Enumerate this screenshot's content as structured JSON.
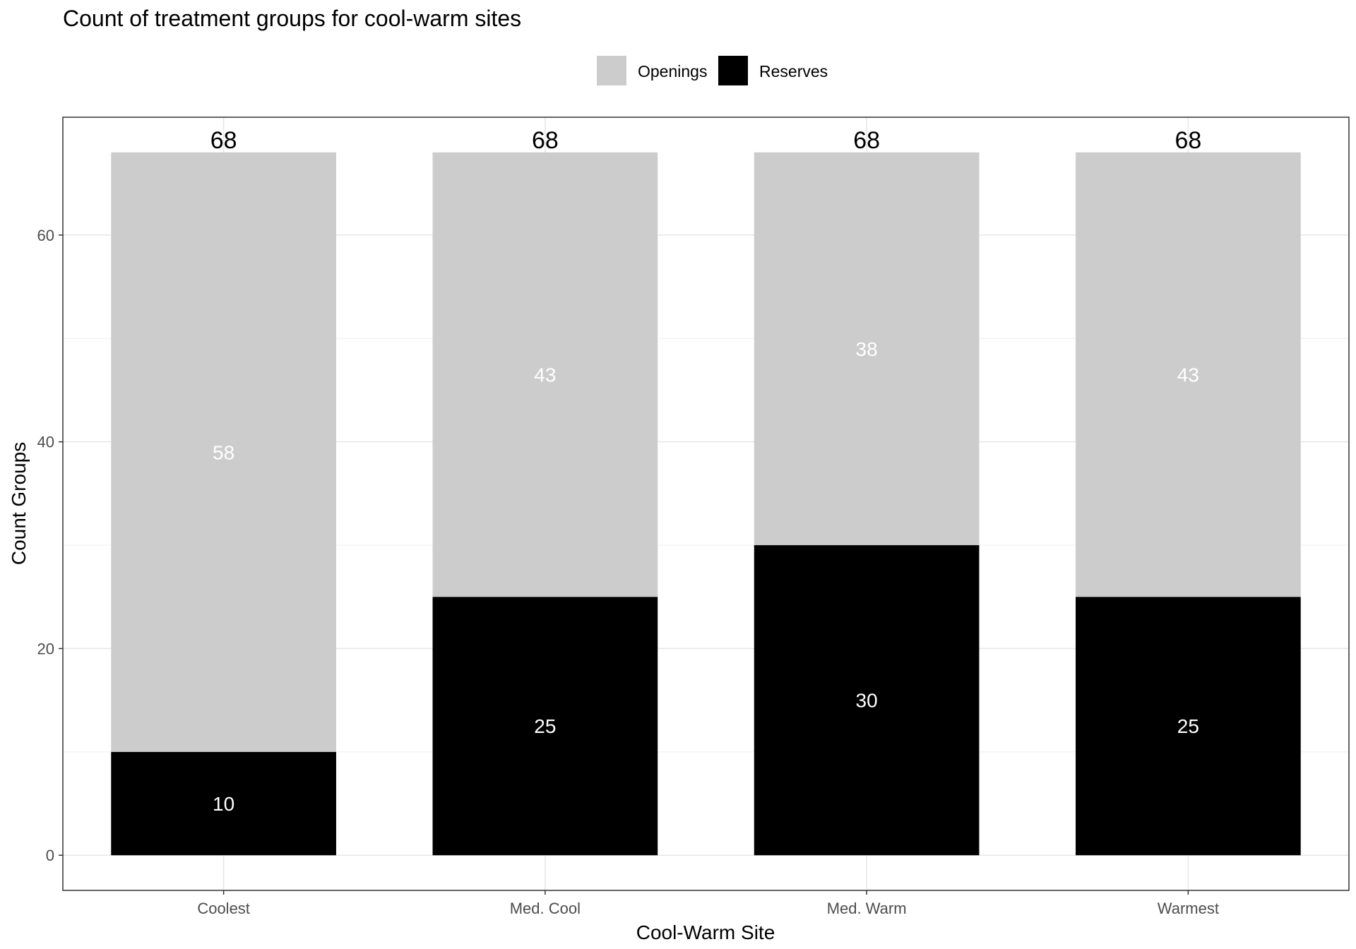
{
  "chart_data": {
    "type": "bar",
    "stacked": true,
    "title": "Count of treatment groups for cool-warm sites",
    "xlabel": "Cool-Warm Site",
    "ylabel": "Count Groups",
    "categories": [
      "Coolest",
      "Med. Cool",
      "Med. Warm",
      "Warmest"
    ],
    "series": [
      {
        "name": "Reserves",
        "values": [
          10,
          25,
          30,
          25
        ],
        "color": "#000000",
        "label_color": "#ffffff"
      },
      {
        "name": "Openings",
        "values": [
          58,
          43,
          38,
          43
        ],
        "color": "#cccccc",
        "label_color": "#ffffff"
      }
    ],
    "totals": [
      68,
      68,
      68,
      68
    ],
    "legend_order": [
      "Openings",
      "Reserves"
    ],
    "legend_position": "top",
    "ylim": [
      -3.4,
      71.4
    ],
    "yticks": [
      0,
      20,
      40,
      60
    ],
    "grid": true
  }
}
